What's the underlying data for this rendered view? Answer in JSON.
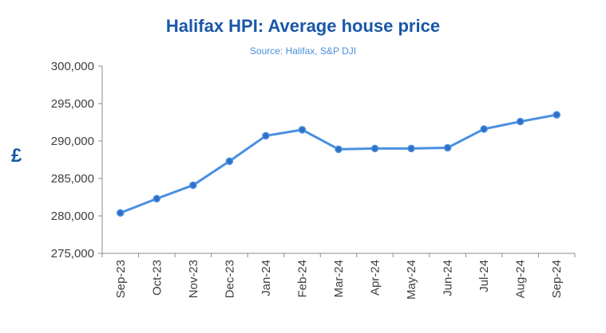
{
  "chart_data": {
    "type": "line",
    "title": "Halifax HPI: Average house price",
    "subtitle": "Source: Halifax,  S&P DJI",
    "ylabel": "£",
    "xlabel": "",
    "categories": [
      "Sep-23",
      "Oct-23",
      "Nov-23",
      "Dec-23",
      "Jan-24",
      "Feb-24",
      "Mar-24",
      "Apr-24",
      "May-24",
      "Jun-24",
      "Jul-24",
      "Aug-24",
      "Sep-24"
    ],
    "series": [
      {
        "values": [
          280400,
          282300,
          284100,
          287300,
          290700,
          291500,
          288900,
          289000,
          289000,
          289100,
          291600,
          292600,
          293500
        ]
      }
    ],
    "ylim": [
      275000,
      300000
    ],
    "yticks": [
      275000,
      280000,
      285000,
      290000,
      295000,
      300000
    ],
    "ytick_labels": [
      "275,000",
      "280,000",
      "285,000",
      "290,000",
      "295,000",
      "300,000"
    ],
    "grid": false,
    "legend": "none",
    "colors": {
      "line": "#4a90e2",
      "marker": "#2f6fc4",
      "title": "#1a57a8",
      "subtitle": "#4a90d9",
      "axis": "#8c8c8c"
    }
  }
}
